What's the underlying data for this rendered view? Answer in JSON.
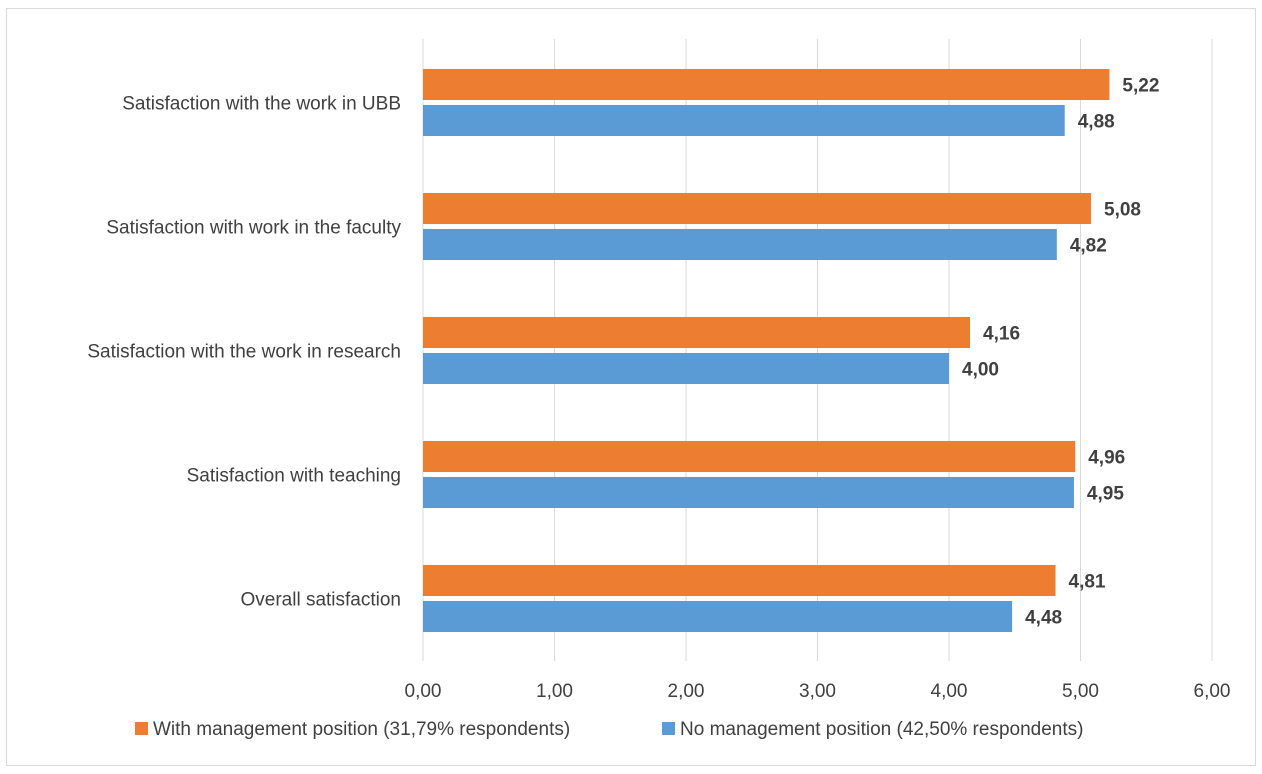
{
  "chart_data": {
    "type": "bar",
    "orientation": "horizontal",
    "categories": [
      "Satisfaction with the work in UBB",
      "Satisfaction with work in the faculty",
      "Satisfaction with the work in research",
      "Satisfaction with teaching",
      "Overall satisfaction"
    ],
    "series": [
      {
        "name": "With management position (31,79% respondents)",
        "color": "#ED7D31",
        "values": [
          5.22,
          5.08,
          4.16,
          4.96,
          4.81
        ],
        "labels": [
          "5,22",
          "5,08",
          "4,16",
          "4,96",
          "4,81"
        ]
      },
      {
        "name": "No management position (42,50% respondents)",
        "color": "#5B9BD5",
        "values": [
          4.88,
          4.82,
          4.0,
          4.95,
          4.48
        ],
        "labels": [
          "4,88",
          "4,82",
          "4,00",
          "4,95",
          "4,48"
        ]
      }
    ],
    "xlim": [
      0,
      6
    ],
    "xticks": [
      0,
      1,
      2,
      3,
      4,
      5,
      6
    ],
    "xtick_labels": [
      "0,00",
      "1,00",
      "2,00",
      "3,00",
      "4,00",
      "5,00",
      "6,00"
    ],
    "grid": true,
    "legend_position": "bottom"
  }
}
